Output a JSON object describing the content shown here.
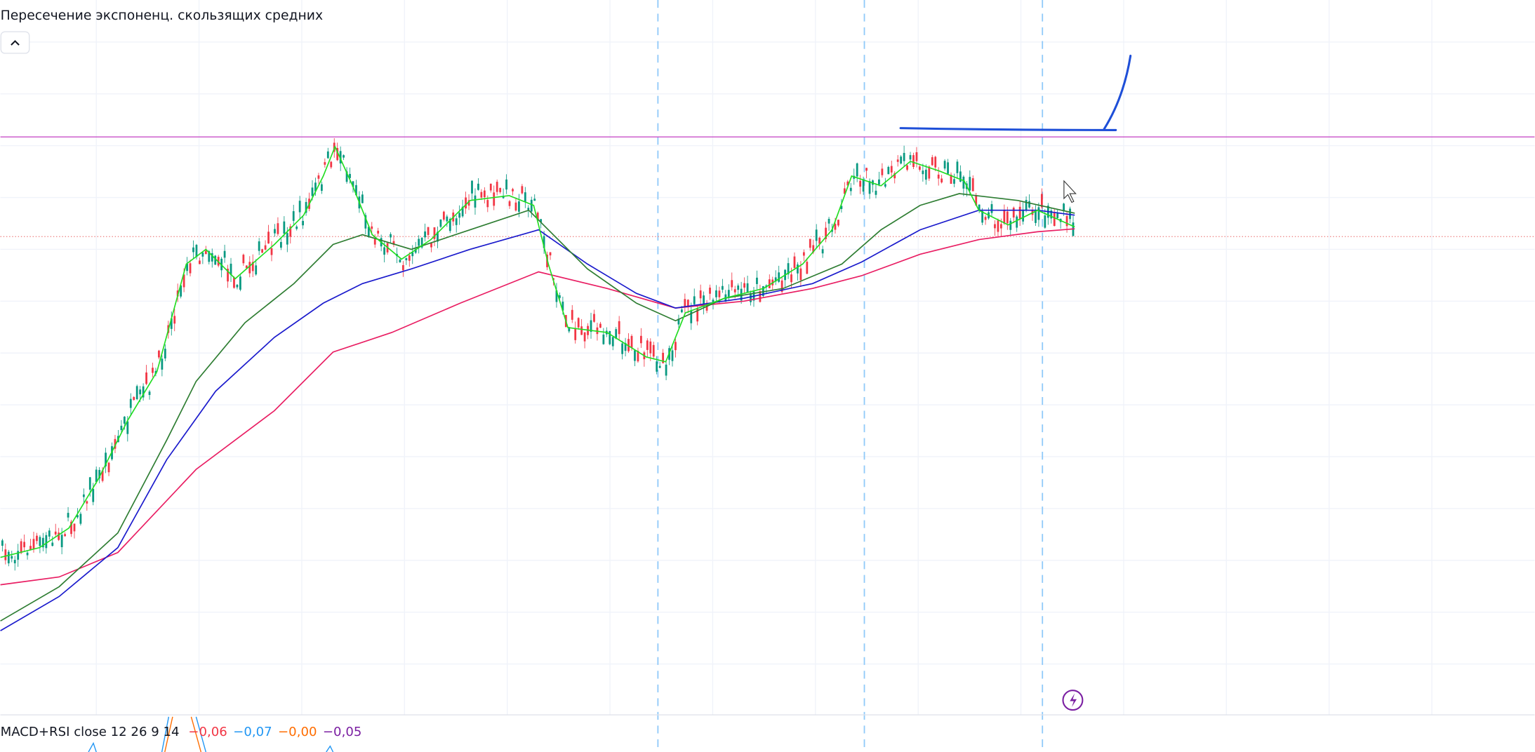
{
  "header": {
    "title": "Пересечение экспоненц. скользящих средних"
  },
  "indicator": {
    "name": "MACD+RSI close 12 26 9 14",
    "values": [
      {
        "text": "−0,06",
        "color": "#f23645"
      },
      {
        "text": "−0,07",
        "color": "#2196f3"
      },
      {
        "text": "−0,00",
        "color": "#ff6d00"
      },
      {
        "text": "−0,05",
        "color": "#7b1fa2"
      }
    ]
  }
}
